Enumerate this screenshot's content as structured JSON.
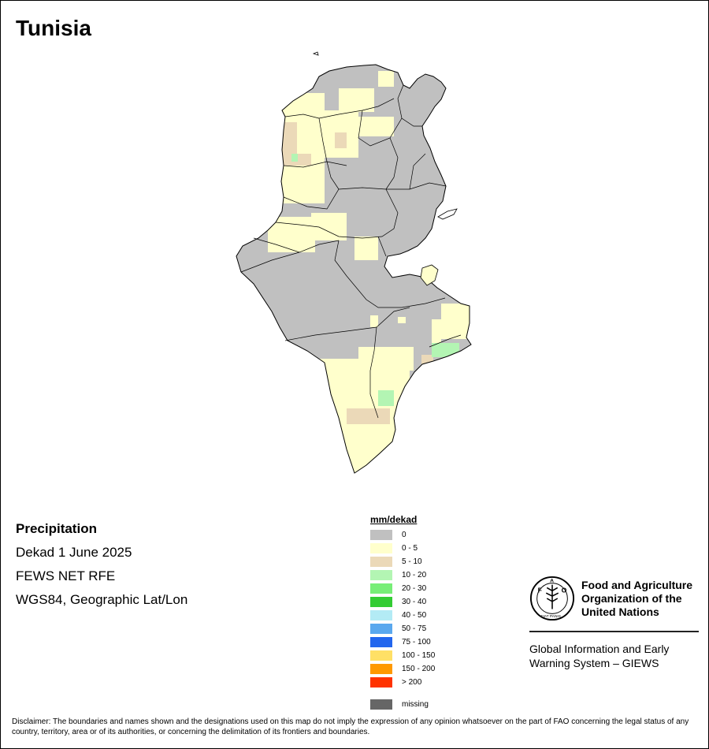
{
  "title": "Tunisia",
  "info": {
    "heading": "Precipitation",
    "period": "Dekad 1 June 2025",
    "source": "FEWS NET RFE",
    "projection": "WGS84, Geographic Lat/Lon"
  },
  "legend": {
    "title": "mm/dekad",
    "classes": [
      {
        "label": "0",
        "color": "#c0c0c0"
      },
      {
        "label": "0 - 5",
        "color": "#ffffcc"
      },
      {
        "label": "5 - 10",
        "color": "#ebd9b8"
      },
      {
        "label": "10 - 20",
        "color": "#b3f5b3"
      },
      {
        "label": "20 - 30",
        "color": "#77ee77"
      },
      {
        "label": "30 - 40",
        "color": "#33cc33"
      },
      {
        "label": "40 - 50",
        "color": "#b3ebf5"
      },
      {
        "label": "50 - 75",
        "color": "#5aa8ee"
      },
      {
        "label": "75 - 100",
        "color": "#2266ee"
      },
      {
        "label": "100 - 150",
        "color": "#ffe066"
      },
      {
        "label": "150 - 200",
        "color": "#ff9900"
      },
      {
        "label": "> 200",
        "color": "#ff3300"
      }
    ],
    "missing": {
      "label": "missing",
      "color": "#666666"
    }
  },
  "organization": {
    "logo_letters": [
      "F",
      "A",
      "O"
    ],
    "logo_motto": "FIAT PANIS",
    "name_lines": [
      "Food and Agriculture",
      "Organization of the",
      "United Nations"
    ],
    "system_lines": [
      "Global Information and Early",
      "Warning System – GIEWS"
    ]
  },
  "disclaimer": "Disclaimer: The boundaries and names shown and the designations used on this map do not imply the expression of any opinion whatsoever on the part of FAO concerning the legal status of any country, territory, area or of its authorities, or concerning the delimitation of its frontiers and boundaries."
}
